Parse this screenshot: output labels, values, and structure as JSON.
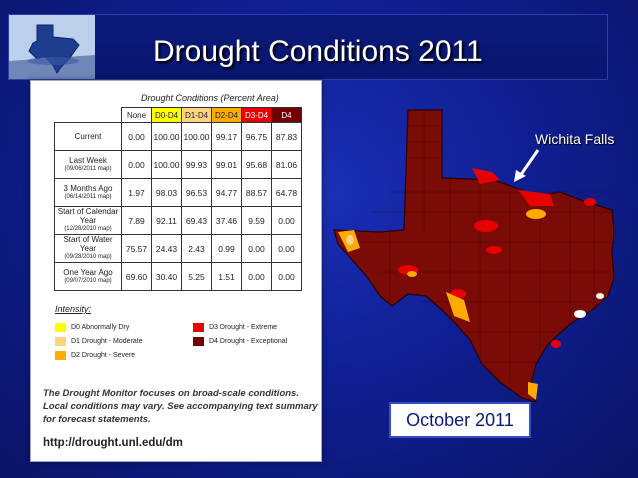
{
  "slide": {
    "title": "Drought Conditions 2011"
  },
  "monitor_panel": {
    "caption": "Drought Conditions (Percent Area)",
    "headers": [
      "None",
      "D0-D4",
      "D1-D4",
      "D2-D4",
      "D3-D4",
      "D4"
    ],
    "rows": [
      {
        "label": "Current",
        "sub": "",
        "values": [
          "0.00",
          "100.00",
          "100.00",
          "99.17",
          "96.75",
          "87.83"
        ]
      },
      {
        "label": "Last Week",
        "sub": "(09/06/2011 map)",
        "values": [
          "0.00",
          "100.00",
          "99.93",
          "99.01",
          "95.68",
          "81.06"
        ]
      },
      {
        "label": "3 Months Ago",
        "sub": "(06/14/2011 map)",
        "values": [
          "1.97",
          "98.03",
          "96.53",
          "94.77",
          "88.57",
          "64.78"
        ]
      },
      {
        "label": "Start of Calendar Year",
        "sub": "(12/28/2010 map)",
        "values": [
          "7.89",
          "92.11",
          "69.43",
          "37.46",
          "9.59",
          "0.00"
        ]
      },
      {
        "label": "Start of Water Year",
        "sub": "(09/28/2010 map)",
        "values": [
          "75.57",
          "24.43",
          "2.43",
          "0.99",
          "0.00",
          "0.00"
        ]
      },
      {
        "label": "One Year Ago",
        "sub": "(09/07/2010 map)",
        "values": [
          "69.60",
          "30.40",
          "5.25",
          "1.51",
          "0.00",
          "0.00"
        ]
      }
    ],
    "intensity_title": "Intensity:",
    "legend": [
      {
        "label": "D0 Abnormally Dry",
        "color": "#ffff00"
      },
      {
        "label": "D1 Drought - Moderate",
        "color": "#fcd37f"
      },
      {
        "label": "D2 Drought - Severe",
        "color": "#ffaa00"
      },
      {
        "label": "D3 Drought - Extreme",
        "color": "#e60000"
      },
      {
        "label": "D4 Drought - Exceptional",
        "color": "#730000"
      }
    ],
    "monitor_text": "The Drought Monitor focuses on broad-scale conditions. Local conditions may vary. See accompanying text summary for forecast statements.",
    "url": "http://drought.unl.edu/dm"
  },
  "map": {
    "callout_label": "Wichita Falls",
    "date_label": "October 2011"
  }
}
